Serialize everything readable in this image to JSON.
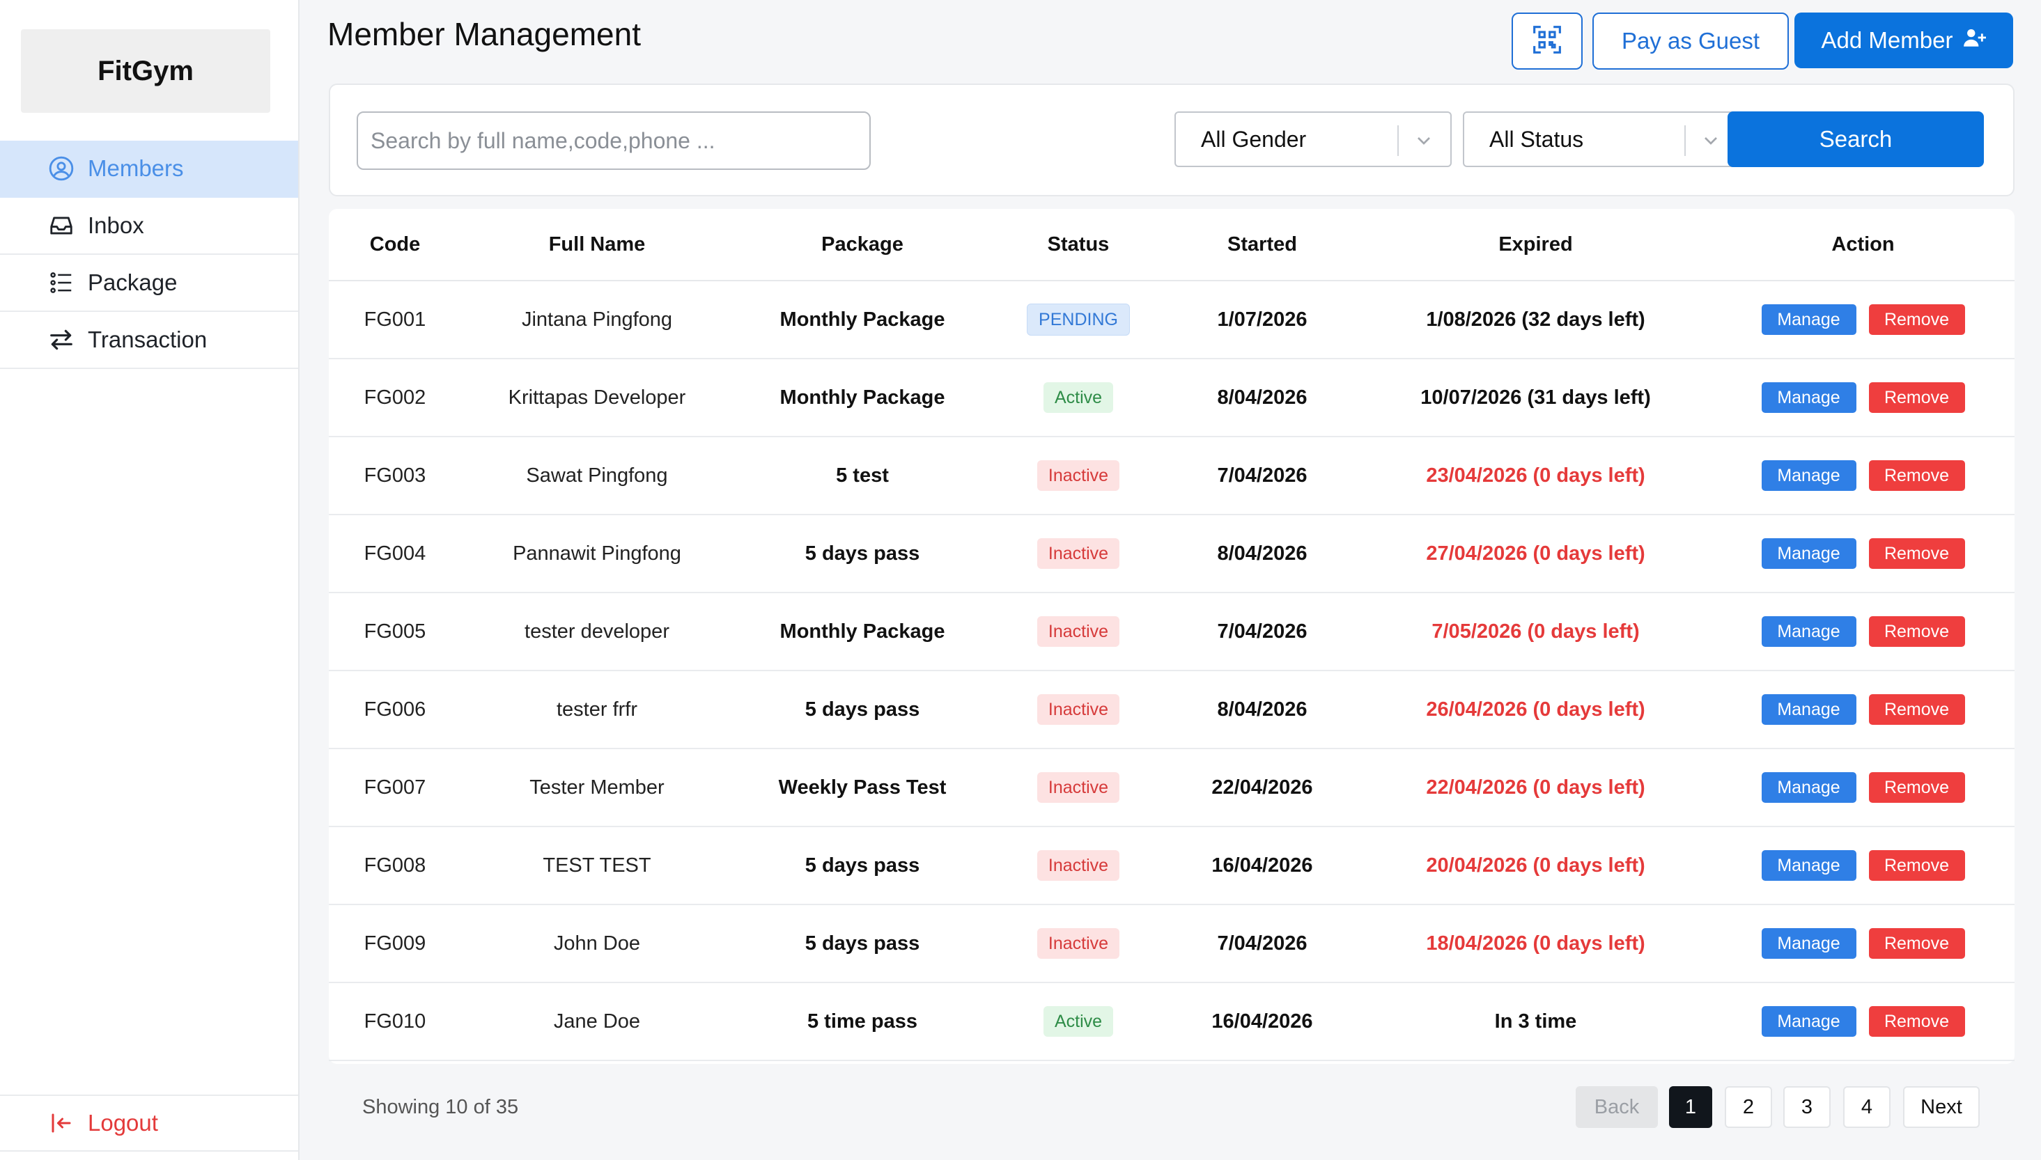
{
  "app": {
    "logo": "FitGym"
  },
  "sidebar": {
    "items": [
      {
        "label": "Members",
        "icon": "user-circle-icon",
        "active": true
      },
      {
        "label": "Inbox",
        "icon": "inbox-icon",
        "active": false
      },
      {
        "label": "Package",
        "icon": "list-icon",
        "active": false
      },
      {
        "label": "Transaction",
        "icon": "arrows-exchange-icon",
        "active": false
      }
    ],
    "logout": "Logout"
  },
  "header": {
    "title": "Member Management",
    "qr_icon": "qr-scan-icon",
    "pay_guest": "Pay as Guest",
    "add_member": "Add Member"
  },
  "filters": {
    "search_placeholder": "Search by full name,code,phone ...",
    "gender": "All Gender",
    "status": "All Status",
    "search_button": "Search"
  },
  "table": {
    "headers": [
      "Code",
      "Full Name",
      "Package",
      "Status",
      "Started",
      "Expired",
      "Action"
    ],
    "manage_label": "Manage",
    "remove_label": "Remove",
    "rows": [
      {
        "code": "FG001",
        "name": "Jintana Pingfong",
        "package": "Monthly Package",
        "status": "PENDING",
        "status_type": "pending",
        "started": "1/07/2026",
        "expired": "1/08/2026 (32 days left)",
        "expired_red": false
      },
      {
        "code": "FG002",
        "name": "Krittapas Developer",
        "package": "Monthly Package",
        "status": "Active",
        "status_type": "active",
        "started": "8/04/2026",
        "expired": "10/07/2026 (31 days left)",
        "expired_red": false
      },
      {
        "code": "FG003",
        "name": "Sawat Pingfong",
        "package": "5 test",
        "status": "Inactive",
        "status_type": "inactive",
        "started": "7/04/2026",
        "expired": "23/04/2026 (0 days left)",
        "expired_red": true
      },
      {
        "code": "FG004",
        "name": "Pannawit Pingfong",
        "package": "5 days pass",
        "status": "Inactive",
        "status_type": "inactive",
        "started": "8/04/2026",
        "expired": "27/04/2026 (0 days left)",
        "expired_red": true
      },
      {
        "code": "FG005",
        "name": "tester developer",
        "package": "Monthly Package",
        "status": "Inactive",
        "status_type": "inactive",
        "started": "7/04/2026",
        "expired": "7/05/2026 (0 days left)",
        "expired_red": true
      },
      {
        "code": "FG006",
        "name": "tester frfr",
        "package": "5 days pass",
        "status": "Inactive",
        "status_type": "inactive",
        "started": "8/04/2026",
        "expired": "26/04/2026 (0 days left)",
        "expired_red": true
      },
      {
        "code": "FG007",
        "name": "Tester Member",
        "package": "Weekly Pass Test",
        "status": "Inactive",
        "status_type": "inactive",
        "started": "22/04/2026",
        "expired": "22/04/2026 (0 days left)",
        "expired_red": true
      },
      {
        "code": "FG008",
        "name": "TEST TEST",
        "package": "5 days pass",
        "status": "Inactive",
        "status_type": "inactive",
        "started": "16/04/2026",
        "expired": "20/04/2026 (0 days left)",
        "expired_red": true
      },
      {
        "code": "FG009",
        "name": "John Doe",
        "package": "5 days pass",
        "status": "Inactive",
        "status_type": "inactive",
        "started": "7/04/2026",
        "expired": "18/04/2026 (0 days left)",
        "expired_red": true
      },
      {
        "code": "FG010",
        "name": "Jane Doe",
        "package": "5 time pass",
        "status": "Active",
        "status_type": "active",
        "started": "16/04/2026",
        "expired": "In 3 time",
        "expired_red": false
      }
    ]
  },
  "footer": {
    "showing": "Showing 10 of 35",
    "back": "Back",
    "pages": [
      "1",
      "2",
      "3",
      "4"
    ],
    "current_page": "1",
    "next": "Next"
  },
  "colors": {
    "primary": "#0b73dd",
    "danger": "#ef3e3e",
    "active_nav_bg": "#d6e6fb",
    "expired_text": "#e53a3a"
  }
}
